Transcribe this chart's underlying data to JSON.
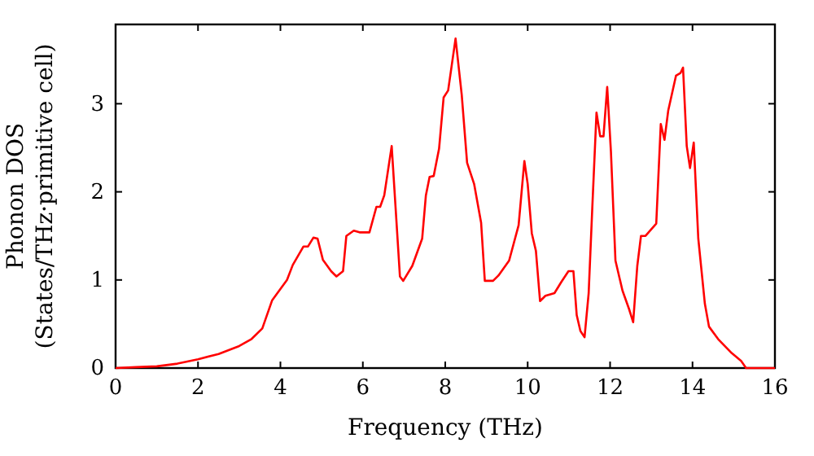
{
  "chart_data": {
    "type": "line",
    "xlabel": "Frequency (THz)",
    "ylabel": "Phonon DOS\n(States/THz·primitive cell)",
    "xlim": [
      0,
      16
    ],
    "ylim": [
      0,
      3.9
    ],
    "xticks": [
      0,
      2,
      4,
      6,
      8,
      10,
      12,
      14,
      16
    ],
    "yticks": [
      0,
      1,
      2,
      3
    ],
    "grid": false,
    "line_style": "solid",
    "marker": "none",
    "x": [
      0,
      0.5,
      1,
      1.5,
      2,
      2.5,
      3,
      3.3,
      3.56,
      3.8,
      4.16,
      4.3,
      4.56,
      4.67,
      4.8,
      4.9,
      5.03,
      5.23,
      5.36,
      5.52,
      5.6,
      5.78,
      5.92,
      6.16,
      6.33,
      6.42,
      6.52,
      6.7,
      6.9,
      6.98,
      7.2,
      7.44,
      7.53,
      7.62,
      7.72,
      7.85,
      7.96,
      8.07,
      8.25,
      8.4,
      8.53,
      8.7,
      8.87,
      8.96,
      9.16,
      9.29,
      9.55,
      9.78,
      9.92,
      10.0,
      10.1,
      10.2,
      10.3,
      10.43,
      10.65,
      10.82,
      10.99,
      11.11,
      11.19,
      11.28,
      11.38,
      11.48,
      11.57,
      11.67,
      11.76,
      11.84,
      11.93,
      12.02,
      12.13,
      12.3,
      12.46,
      12.56,
      12.66,
      12.75,
      12.86,
      13.12,
      13.23,
      13.32,
      13.41,
      13.6,
      13.71,
      13.77,
      13.86,
      13.94,
      14.03,
      14.14,
      14.3,
      14.4,
      14.62,
      14.95,
      15.18,
      15.3,
      16.0
    ],
    "series": [
      {
        "color": "#ff0000",
        "values": [
          0,
          0.01,
          0.02,
          0.05,
          0.1,
          0.16,
          0.25,
          0.33,
          0.45,
          0.77,
          1.0,
          1.17,
          1.38,
          1.38,
          1.48,
          1.47,
          1.23,
          1.1,
          1.04,
          1.1,
          1.5,
          1.56,
          1.54,
          1.54,
          1.83,
          1.83,
          1.96,
          2.52,
          1.04,
          0.99,
          1.16,
          1.47,
          1.96,
          2.17,
          2.18,
          2.49,
          3.07,
          3.15,
          3.74,
          3.1,
          2.33,
          2.09,
          1.65,
          0.99,
          0.99,
          1.05,
          1.22,
          1.62,
          2.35,
          2.09,
          1.53,
          1.33,
          0.76,
          0.82,
          0.85,
          0.98,
          1.1,
          1.1,
          0.6,
          0.42,
          0.35,
          0.85,
          1.84,
          2.9,
          2.63,
          2.63,
          3.19,
          2.46,
          1.22,
          0.88,
          0.67,
          0.52,
          1.16,
          1.5,
          1.5,
          1.64,
          2.77,
          2.59,
          2.92,
          3.32,
          3.35,
          3.41,
          2.52,
          2.27,
          2.56,
          1.47,
          0.73,
          0.47,
          0.33,
          0.17,
          0.08,
          0,
          0
        ]
      }
    ]
  }
}
